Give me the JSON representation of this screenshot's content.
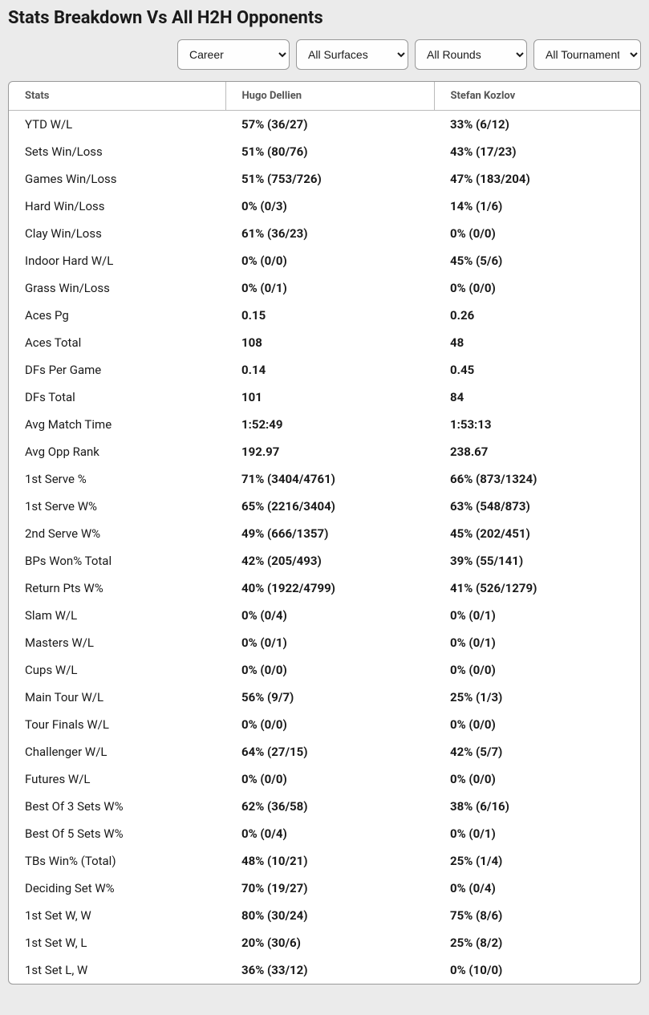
{
  "title": "Stats Breakdown Vs All H2H Opponents",
  "filters": {
    "career": {
      "selected": "Career",
      "options": [
        "Career"
      ]
    },
    "surfaces": {
      "selected": "All Surfaces",
      "options": [
        "All Surfaces"
      ]
    },
    "rounds": {
      "selected": "All Rounds",
      "options": [
        "All Rounds"
      ]
    },
    "tournaments": {
      "selected": "All Tournaments",
      "options": [
        "All Tournaments"
      ]
    }
  },
  "columns": {
    "stats": "Stats",
    "player1": "Hugo Dellien",
    "player2": "Stefan Kozlov"
  },
  "rows": [
    {
      "label": "YTD W/L",
      "p1": "57% (36/27)",
      "p2": "33% (6/12)"
    },
    {
      "label": "Sets Win/Loss",
      "p1": "51% (80/76)",
      "p2": "43% (17/23)"
    },
    {
      "label": "Games Win/Loss",
      "p1": "51% (753/726)",
      "p2": "47% (183/204)"
    },
    {
      "label": "Hard Win/Loss",
      "p1": "0% (0/3)",
      "p2": "14% (1/6)"
    },
    {
      "label": "Clay Win/Loss",
      "p1": "61% (36/23)",
      "p2": "0% (0/0)"
    },
    {
      "label": "Indoor Hard W/L",
      "p1": "0% (0/0)",
      "p2": "45% (5/6)"
    },
    {
      "label": "Grass Win/Loss",
      "p1": "0% (0/1)",
      "p2": "0% (0/0)"
    },
    {
      "label": "Aces Pg",
      "p1": "0.15",
      "p2": "0.26"
    },
    {
      "label": "Aces Total",
      "p1": "108",
      "p2": "48"
    },
    {
      "label": "DFs Per Game",
      "p1": "0.14",
      "p2": "0.45"
    },
    {
      "label": "DFs Total",
      "p1": "101",
      "p2": "84"
    },
    {
      "label": "Avg Match Time",
      "p1": "1:52:49",
      "p2": "1:53:13"
    },
    {
      "label": "Avg Opp Rank",
      "p1": "192.97",
      "p2": "238.67"
    },
    {
      "label": "1st Serve %",
      "p1": "71% (3404/4761)",
      "p2": "66% (873/1324)"
    },
    {
      "label": "1st Serve W%",
      "p1": "65% (2216/3404)",
      "p2": "63% (548/873)"
    },
    {
      "label": "2nd Serve W%",
      "p1": "49% (666/1357)",
      "p2": "45% (202/451)"
    },
    {
      "label": "BPs Won% Total",
      "p1": "42% (205/493)",
      "p2": "39% (55/141)"
    },
    {
      "label": "Return Pts W%",
      "p1": "40% (1922/4799)",
      "p2": "41% (526/1279)"
    },
    {
      "label": "Slam W/L",
      "p1": "0% (0/4)",
      "p2": "0% (0/1)"
    },
    {
      "label": "Masters W/L",
      "p1": "0% (0/1)",
      "p2": "0% (0/1)"
    },
    {
      "label": "Cups W/L",
      "p1": "0% (0/0)",
      "p2": "0% (0/0)"
    },
    {
      "label": "Main Tour W/L",
      "p1": "56% (9/7)",
      "p2": "25% (1/3)"
    },
    {
      "label": "Tour Finals W/L",
      "p1": "0% (0/0)",
      "p2": "0% (0/0)"
    },
    {
      "label": "Challenger W/L",
      "p1": "64% (27/15)",
      "p2": "42% (5/7)"
    },
    {
      "label": "Futures W/L",
      "p1": "0% (0/0)",
      "p2": "0% (0/0)"
    },
    {
      "label": "Best Of 3 Sets W%",
      "p1": "62% (36/58)",
      "p2": "38% (6/16)"
    },
    {
      "label": "Best Of 5 Sets W%",
      "p1": "0% (0/4)",
      "p2": "0% (0/1)"
    },
    {
      "label": "TBs Win% (Total)",
      "p1": "48% (10/21)",
      "p2": "25% (1/4)"
    },
    {
      "label": "Deciding Set W%",
      "p1": "70% (19/27)",
      "p2": "0% (0/4)"
    },
    {
      "label": "1st Set W, W",
      "p1": "80% (30/24)",
      "p2": "75% (8/6)"
    },
    {
      "label": "1st Set W, L",
      "p1": "20% (30/6)",
      "p2": "25% (8/2)"
    },
    {
      "label": "1st Set L, W",
      "p1": "36% (33/12)",
      "p2": "0% (10/0)"
    }
  ],
  "styling": {
    "background_color": "#ebebeb",
    "card_background": "#ffffff",
    "border_color": "#999999",
    "header_text_color": "#555555",
    "body_text_color": "#1a1a1a",
    "title_fontsize": 22,
    "header_fontsize": 13,
    "cell_fontsize": 15
  }
}
